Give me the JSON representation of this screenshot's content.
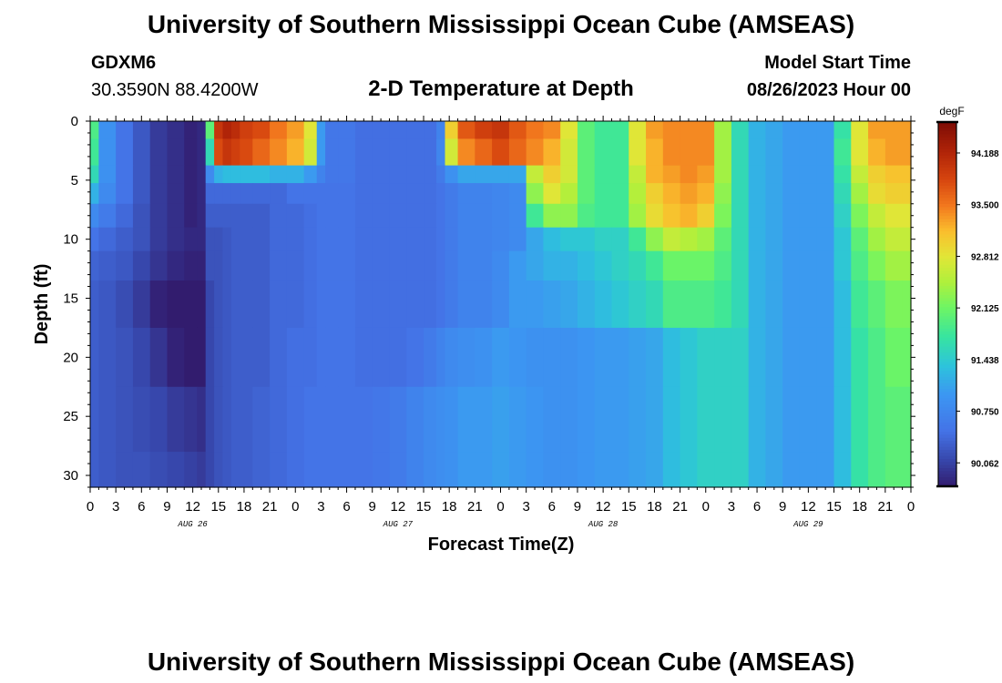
{
  "header": {
    "title": "University of Southern Mississippi Ocean Cube (AMSEAS)",
    "station": "GDXM6",
    "coords": "30.3590N  88.4200W",
    "plot_title": "2-D Temperature at Depth",
    "start_label": "Model Start Time",
    "start_value": "08/26/2023 Hour 00"
  },
  "footer": {
    "title": "University of Southern Mississippi Ocean Cube (AMSEAS)"
  },
  "chart_data": {
    "type": "heatmap",
    "title": "2-D Temperature at Depth",
    "xlabel": "Forecast Time(Z)",
    "ylabel": "Depth (ft)",
    "x_unit": "forecast hour",
    "x_range": [
      0,
      96
    ],
    "x_tick_hours": [
      0,
      3,
      6,
      9,
      12,
      15,
      18,
      21,
      24,
      27,
      30,
      33,
      36,
      39,
      42,
      45,
      48,
      51,
      54,
      57,
      60,
      63,
      66,
      69,
      72,
      75,
      78,
      81,
      84,
      87,
      90,
      93,
      96
    ],
    "x_tick_labels": [
      "0",
      "3",
      "6",
      "9",
      "12",
      "15",
      "18",
      "21",
      "0",
      "3",
      "6",
      "9",
      "12",
      "15",
      "18",
      "21",
      "0",
      "3",
      "6",
      "9",
      "12",
      "15",
      "18",
      "21",
      "0",
      "3",
      "6",
      "9",
      "12",
      "15",
      "18",
      "21",
      "0"
    ],
    "day_labels": [
      {
        "hour": 12,
        "text": "AUG 26"
      },
      {
        "hour": 36,
        "text": "AUG 27"
      },
      {
        "hour": 60,
        "text": "AUG 28"
      },
      {
        "hour": 84,
        "text": "AUG 29"
      }
    ],
    "y_range": [
      0,
      31
    ],
    "y_ticks": [
      "0",
      "5",
      "10",
      "15",
      "20",
      "25",
      "30"
    ],
    "colorbar": {
      "unit": "degF",
      "min": 89.75,
      "max": 94.6,
      "tick_values": [
        90.062,
        90.75,
        91.438,
        92.125,
        92.812,
        93.5,
        94.188
      ],
      "tick_labels": [
        "90.062",
        "90.750",
        "91.438",
        "92.125",
        "92.812",
        "93.500",
        "94.188"
      ]
    },
    "hours": [
      0,
      2,
      4,
      6,
      8,
      10,
      12,
      13,
      14,
      15,
      16,
      17,
      18,
      20,
      22,
      24,
      26,
      27,
      28,
      30,
      32,
      34,
      36,
      38,
      40,
      41,
      42,
      44,
      46,
      48,
      50,
      52,
      54,
      56,
      58,
      60,
      62,
      64,
      66,
      68,
      70,
      72,
      74,
      76,
      78,
      80,
      82,
      84,
      86,
      88,
      90,
      92,
      94,
      96
    ],
    "depths_ft": [
      0,
      3,
      4.5,
      6,
      8,
      10,
      12,
      15,
      20,
      25,
      31
    ],
    "temperature_degF": [
      [
        91.9,
        90.9,
        90.5,
        90.25,
        90.0,
        89.9,
        89.8,
        89.85,
        92.0,
        94.0,
        94.2,
        94.1,
        93.9,
        93.8,
        93.5,
        93.3,
        92.8,
        91.0,
        90.55,
        90.55,
        90.45,
        90.45,
        90.45,
        90.45,
        90.45,
        90.7,
        93.0,
        93.7,
        93.9,
        94.0,
        93.7,
        93.5,
        93.4,
        92.8,
        92.0,
        91.8,
        91.8,
        92.8,
        93.3,
        93.4,
        93.4,
        93.4,
        92.4,
        91.6,
        91.2,
        91.1,
        91.0,
        91.0,
        91.0,
        91.7,
        92.8,
        93.3,
        93.3,
        93.3
      ],
      [
        91.8,
        90.9,
        90.5,
        90.25,
        90.0,
        89.9,
        89.8,
        89.85,
        91.6,
        93.8,
        94.0,
        93.9,
        93.8,
        93.6,
        93.4,
        93.2,
        92.7,
        91.0,
        90.55,
        90.55,
        90.45,
        90.45,
        90.45,
        90.45,
        90.45,
        90.75,
        92.7,
        93.4,
        93.6,
        93.8,
        93.6,
        93.4,
        93.2,
        92.7,
        92.0,
        91.8,
        91.8,
        92.8,
        93.2,
        93.4,
        93.4,
        93.4,
        92.4,
        91.6,
        91.2,
        91.1,
        91.0,
        91.0,
        91.0,
        91.8,
        92.8,
        93.2,
        93.3,
        93.3
      ],
      [
        91.6,
        90.9,
        90.5,
        90.25,
        90.0,
        89.9,
        89.8,
        89.85,
        90.8,
        91.2,
        91.3,
        91.3,
        91.3,
        91.3,
        91.2,
        91.2,
        91.0,
        90.7,
        90.55,
        90.55,
        90.45,
        90.45,
        90.45,
        90.45,
        90.45,
        90.6,
        90.9,
        91.1,
        91.1,
        91.1,
        91.1,
        92.6,
        93.0,
        92.7,
        92.0,
        91.8,
        91.8,
        92.6,
        93.2,
        93.3,
        93.4,
        93.3,
        92.4,
        91.6,
        91.2,
        91.1,
        91.0,
        91.0,
        91.0,
        91.7,
        92.6,
        93.0,
        93.1,
        93.1
      ],
      [
        91.2,
        90.8,
        90.5,
        90.25,
        90.0,
        89.9,
        89.8,
        89.85,
        90.4,
        90.4,
        90.4,
        90.4,
        90.4,
        90.4,
        90.4,
        90.5,
        90.5,
        90.5,
        90.5,
        90.5,
        90.45,
        90.45,
        90.45,
        90.45,
        90.45,
        90.5,
        90.6,
        90.7,
        90.7,
        90.75,
        90.8,
        92.3,
        92.8,
        92.5,
        92.0,
        91.8,
        91.8,
        92.5,
        93.0,
        93.2,
        93.3,
        93.2,
        92.3,
        91.6,
        91.2,
        91.1,
        91.0,
        91.0,
        91.0,
        91.6,
        92.4,
        92.9,
        93.0,
        93.0
      ],
      [
        90.8,
        90.6,
        90.4,
        90.2,
        90.0,
        89.9,
        89.8,
        89.85,
        90.3,
        90.3,
        90.3,
        90.3,
        90.3,
        90.3,
        90.4,
        90.4,
        90.45,
        90.5,
        90.5,
        90.5,
        90.45,
        90.45,
        90.45,
        90.45,
        90.45,
        90.5,
        90.6,
        90.7,
        90.7,
        90.75,
        90.8,
        91.8,
        92.3,
        92.3,
        91.9,
        91.8,
        91.8,
        92.4,
        92.9,
        93.1,
        93.2,
        93.0,
        92.2,
        91.6,
        91.2,
        91.1,
        91.0,
        91.0,
        91.0,
        91.5,
        92.2,
        92.6,
        92.8,
        92.8
      ],
      [
        90.5,
        90.4,
        90.3,
        90.2,
        90.0,
        89.9,
        89.85,
        89.85,
        90.2,
        90.2,
        90.25,
        90.3,
        90.3,
        90.3,
        90.4,
        90.4,
        90.45,
        90.5,
        90.5,
        90.5,
        90.45,
        90.45,
        90.45,
        90.45,
        90.45,
        90.5,
        90.6,
        90.7,
        90.7,
        90.75,
        90.8,
        91.1,
        91.3,
        91.4,
        91.4,
        91.5,
        91.5,
        91.8,
        92.3,
        92.6,
        92.5,
        92.4,
        92.0,
        91.6,
        91.2,
        91.1,
        91.0,
        91.0,
        91.0,
        91.4,
        92.0,
        92.4,
        92.6,
        92.6
      ],
      [
        90.35,
        90.3,
        90.25,
        90.1,
        89.95,
        89.85,
        89.8,
        89.8,
        90.2,
        90.2,
        90.25,
        90.3,
        90.3,
        90.3,
        90.4,
        90.4,
        90.45,
        90.5,
        90.5,
        90.5,
        90.45,
        90.45,
        90.45,
        90.45,
        90.45,
        90.5,
        90.6,
        90.7,
        90.7,
        90.8,
        91.0,
        91.1,
        91.2,
        91.2,
        91.3,
        91.4,
        91.5,
        91.6,
        91.8,
        92.1,
        92.1,
        92.1,
        91.9,
        91.6,
        91.2,
        91.1,
        91.0,
        91.0,
        91.0,
        91.4,
        91.9,
        92.2,
        92.4,
        92.4
      ],
      [
        90.3,
        90.25,
        90.15,
        90.0,
        89.8,
        89.7,
        89.7,
        89.75,
        90.1,
        90.2,
        90.25,
        90.3,
        90.3,
        90.3,
        90.4,
        90.4,
        90.45,
        90.5,
        90.5,
        90.5,
        90.45,
        90.45,
        90.45,
        90.45,
        90.45,
        90.5,
        90.6,
        90.7,
        90.7,
        90.8,
        91.0,
        91.0,
        91.05,
        91.1,
        91.2,
        91.3,
        91.4,
        91.5,
        91.6,
        91.9,
        91.9,
        91.9,
        91.8,
        91.6,
        91.2,
        91.1,
        91.0,
        91.0,
        91.0,
        91.3,
        91.8,
        92.0,
        92.2,
        92.2
      ],
      [
        90.3,
        90.25,
        90.2,
        90.1,
        89.95,
        89.8,
        89.75,
        89.75,
        90.1,
        90.2,
        90.25,
        90.3,
        90.3,
        90.3,
        90.4,
        90.45,
        90.45,
        90.5,
        90.5,
        90.5,
        90.45,
        90.45,
        90.45,
        90.5,
        90.6,
        90.7,
        90.8,
        90.85,
        90.9,
        91.0,
        90.95,
        90.9,
        90.9,
        90.9,
        90.95,
        91.0,
        91.0,
        91.05,
        91.1,
        91.3,
        91.4,
        91.5,
        91.5,
        91.5,
        91.2,
        91.1,
        91.0,
        91.0,
        91.0,
        91.3,
        91.7,
        91.9,
        92.1,
        92.1
      ],
      [
        90.3,
        90.25,
        90.2,
        90.15,
        90.1,
        90.0,
        89.95,
        89.9,
        90.1,
        90.2,
        90.25,
        90.3,
        90.3,
        90.35,
        90.4,
        90.45,
        90.5,
        90.5,
        90.5,
        90.5,
        90.5,
        90.55,
        90.6,
        90.7,
        90.8,
        90.85,
        90.9,
        91.0,
        91.0,
        91.05,
        91.0,
        90.95,
        90.9,
        90.9,
        90.95,
        91.0,
        91.0,
        91.05,
        91.1,
        91.3,
        91.4,
        91.5,
        91.5,
        91.5,
        91.2,
        91.1,
        91.0,
        91.0,
        91.0,
        91.3,
        91.7,
        91.9,
        92.0,
        92.0
      ],
      [
        90.3,
        90.25,
        90.2,
        90.2,
        90.15,
        90.1,
        90.05,
        90.0,
        90.1,
        90.2,
        90.25,
        90.3,
        90.3,
        90.35,
        90.4,
        90.45,
        90.5,
        90.5,
        90.5,
        90.5,
        90.5,
        90.55,
        90.6,
        90.7,
        90.8,
        90.85,
        90.9,
        91.0,
        91.0,
        91.05,
        91.0,
        90.95,
        90.9,
        90.9,
        90.95,
        91.0,
        91.0,
        91.05,
        91.1,
        91.3,
        91.4,
        91.5,
        91.5,
        91.5,
        91.2,
        91.1,
        91.0,
        91.0,
        91.0,
        91.3,
        91.7,
        91.9,
        92.0,
        92.0
      ]
    ]
  }
}
